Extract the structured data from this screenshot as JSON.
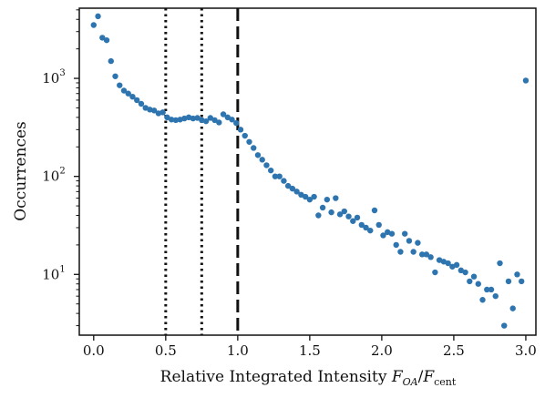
{
  "chart_data": {
    "type": "scatter",
    "xlabel_main": "Relative Integrated Intensity ",
    "xlabel_F": "F",
    "xlabel_sub1": "OA",
    "xlabel_slash": "/",
    "xlabel_F2": "F",
    "xlabel_sub2": "cent",
    "ylabel": "Occurrences",
    "xlim": [
      -0.1,
      3.07
    ],
    "ylim": [
      2.4,
      5200
    ],
    "yscale": "log",
    "xticks": [
      {
        "value": 0.0,
        "label": "0.0"
      },
      {
        "value": 0.5,
        "label": "0.5"
      },
      {
        "value": 1.0,
        "label": "1.0"
      },
      {
        "value": 1.5,
        "label": "1.5"
      },
      {
        "value": 2.0,
        "label": "2.0"
      },
      {
        "value": 2.5,
        "label": "2.5"
      },
      {
        "value": 3.0,
        "label": "3.0"
      }
    ],
    "yticks": [
      {
        "value": 10,
        "base": "10",
        "exp": "1"
      },
      {
        "value": 100,
        "base": "10",
        "exp": "2"
      },
      {
        "value": 1000,
        "base": "10",
        "exp": "3"
      }
    ],
    "vlines": [
      {
        "x": 0.5,
        "style": "dotted"
      },
      {
        "x": 0.75,
        "style": "dotted"
      },
      {
        "x": 1.0,
        "style": "dashed"
      }
    ],
    "marker_color": "#2e75b0",
    "points": [
      [
        0.0,
        3500
      ],
      [
        0.03,
        4300
      ],
      [
        0.06,
        2600
      ],
      [
        0.09,
        2450
      ],
      [
        0.12,
        1500
      ],
      [
        0.15,
        1050
      ],
      [
        0.18,
        850
      ],
      [
        0.21,
        750
      ],
      [
        0.24,
        700
      ],
      [
        0.27,
        650
      ],
      [
        0.3,
        600
      ],
      [
        0.33,
        550
      ],
      [
        0.36,
        500
      ],
      [
        0.39,
        480
      ],
      [
        0.42,
        470
      ],
      [
        0.45,
        440
      ],
      [
        0.48,
        450
      ],
      [
        0.51,
        400
      ],
      [
        0.54,
        380
      ],
      [
        0.57,
        375
      ],
      [
        0.6,
        380
      ],
      [
        0.63,
        390
      ],
      [
        0.66,
        400
      ],
      [
        0.69,
        390
      ],
      [
        0.72,
        395
      ],
      [
        0.75,
        375
      ],
      [
        0.78,
        365
      ],
      [
        0.81,
        395
      ],
      [
        0.84,
        375
      ],
      [
        0.87,
        355
      ],
      [
        0.9,
        430
      ],
      [
        0.93,
        400
      ],
      [
        0.96,
        380
      ],
      [
        0.99,
        350
      ],
      [
        1.02,
        300
      ],
      [
        1.05,
        260
      ],
      [
        1.08,
        225
      ],
      [
        1.11,
        195
      ],
      [
        1.14,
        165
      ],
      [
        1.17,
        148
      ],
      [
        1.2,
        130
      ],
      [
        1.23,
        115
      ],
      [
        1.26,
        100
      ],
      [
        1.29,
        100
      ],
      [
        1.32,
        90
      ],
      [
        1.35,
        80
      ],
      [
        1.38,
        75
      ],
      [
        1.41,
        70
      ],
      [
        1.44,
        65
      ],
      [
        1.47,
        62
      ],
      [
        1.5,
        58
      ],
      [
        1.53,
        62
      ],
      [
        1.56,
        40
      ],
      [
        1.59,
        48
      ],
      [
        1.62,
        58
      ],
      [
        1.65,
        43
      ],
      [
        1.68,
        60
      ],
      [
        1.71,
        41
      ],
      [
        1.74,
        44
      ],
      [
        1.77,
        39
      ],
      [
        1.8,
        35
      ],
      [
        1.83,
        38
      ],
      [
        1.86,
        32
      ],
      [
        1.89,
        30
      ],
      [
        1.92,
        28
      ],
      [
        1.95,
        45
      ],
      [
        1.98,
        32
      ],
      [
        2.01,
        25
      ],
      [
        2.04,
        27
      ],
      [
        2.07,
        26
      ],
      [
        2.1,
        20
      ],
      [
        2.13,
        17
      ],
      [
        2.16,
        26
      ],
      [
        2.19,
        22
      ],
      [
        2.22,
        17
      ],
      [
        2.25,
        21
      ],
      [
        2.28,
        16
      ],
      [
        2.31,
        16
      ],
      [
        2.34,
        15
      ],
      [
        2.37,
        10.5
      ],
      [
        2.4,
        14
      ],
      [
        2.43,
        13.5
      ],
      [
        2.46,
        13
      ],
      [
        2.49,
        12
      ],
      [
        2.52,
        12.5
      ],
      [
        2.55,
        11
      ],
      [
        2.58,
        10.5
      ],
      [
        2.61,
        8.5
      ],
      [
        2.64,
        9.5
      ],
      [
        2.67,
        8
      ],
      [
        2.7,
        5.5
      ],
      [
        2.73,
        7
      ],
      [
        2.76,
        7
      ],
      [
        2.79,
        6
      ],
      [
        2.82,
        13
      ],
      [
        2.85,
        3
      ],
      [
        2.88,
        8.5
      ],
      [
        2.91,
        4.5
      ],
      [
        2.94,
        10
      ],
      [
        2.97,
        8.5
      ],
      [
        3.0,
        950
      ]
    ]
  }
}
